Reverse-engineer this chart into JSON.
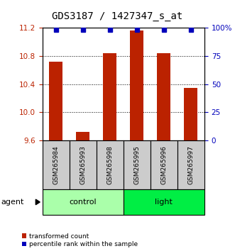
{
  "title": "GDS3187 / 1427347_s_at",
  "samples": [
    "GSM265984",
    "GSM265993",
    "GSM265998",
    "GSM265995",
    "GSM265996",
    "GSM265997"
  ],
  "red_values": [
    10.72,
    9.72,
    10.84,
    11.16,
    10.84,
    10.35
  ],
  "blue_values": [
    98,
    98,
    98,
    98,
    98,
    98
  ],
  "ylim_left": [
    9.6,
    11.2
  ],
  "ylim_right": [
    0,
    100
  ],
  "yticks_left": [
    9.6,
    10.0,
    10.4,
    10.8,
    11.2
  ],
  "yticks_right": [
    0,
    25,
    50,
    75,
    100
  ],
  "ytick_labels_right": [
    "0",
    "25",
    "50",
    "75",
    "100%"
  ],
  "bar_color": "#BB2200",
  "dot_color": "#0000BB",
  "bar_width": 0.5,
  "tick_label_fontsize": 7.5,
  "title_fontsize": 10,
  "sample_box_color": "#CCCCCC",
  "control_color": "#AAFFAA",
  "light_color": "#00EE44",
  "legend_red_label": "transformed count",
  "legend_blue_label": "percentile rank within the sample",
  "agent_label": "agent",
  "group_configs": [
    {
      "name": "control",
      "xstart": -0.5,
      "xend": 2.5,
      "color": "#AAFFAA"
    },
    {
      "name": "light",
      "xstart": 2.5,
      "xend": 5.5,
      "color": "#00EE44"
    }
  ]
}
